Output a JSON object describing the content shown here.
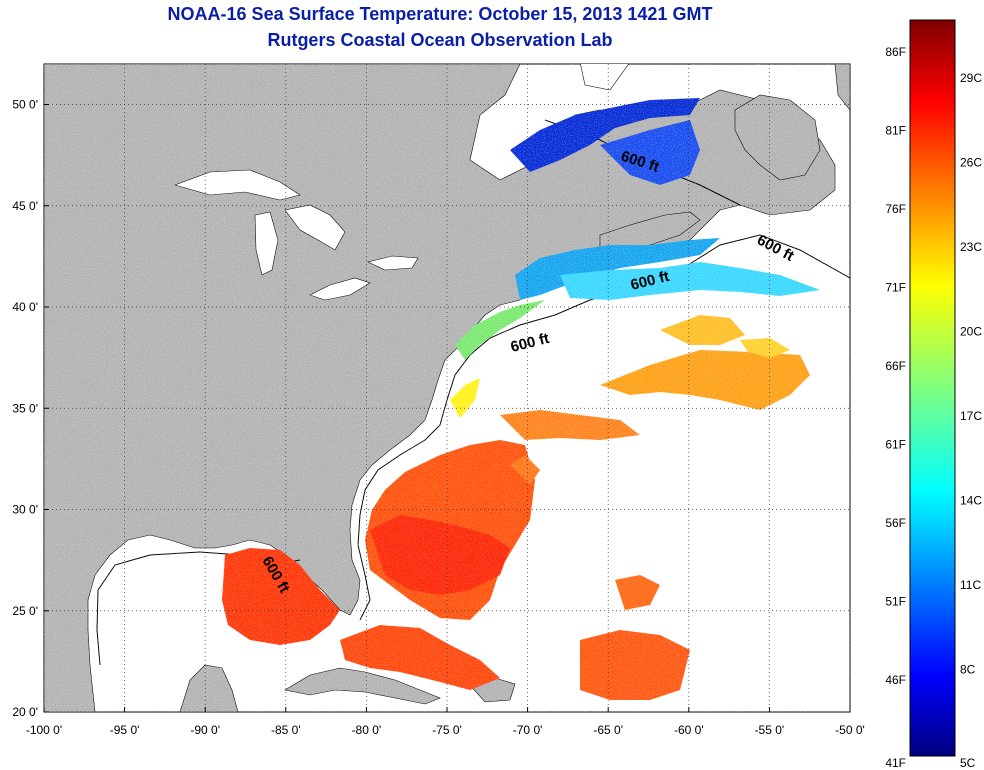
{
  "header": {
    "title": "NOAA-16 Sea Surface Temperature:  October 15, 2013 1421 GMT",
    "subtitle": "Rutgers Coastal Ocean Observation Lab"
  },
  "map": {
    "lon_range": [
      -100,
      -50
    ],
    "lat_range": [
      20,
      52
    ],
    "x_ticks": [
      "-100 0'",
      "-95 0'",
      "-90 0'",
      "-85 0'",
      "-80 0'",
      "-75 0'",
      "-70 0'",
      "-65 0'",
      "-60 0'",
      "-55 0'",
      "-50 0'"
    ],
    "y_ticks": [
      "20 0'",
      "25 0'",
      "30 0'",
      "35 0'",
      "40 0'",
      "45 0'",
      "50 0'"
    ],
    "land_color": "#b4b4b4",
    "ocean_color": "#ffffff",
    "grid": "dotted",
    "contour_label": "600 ft"
  },
  "colorbar": {
    "colormap": "jet",
    "fahrenheit_labels": [
      "86F",
      "81F",
      "76F",
      "71F",
      "66F",
      "61F",
      "56F",
      "51F",
      "46F",
      "41F"
    ],
    "celsius_labels": [
      "29C",
      "26C",
      "23C",
      "20C",
      "17C",
      "14C",
      "11C",
      "8C",
      "5C"
    ],
    "range_c": [
      5,
      30
    ]
  }
}
